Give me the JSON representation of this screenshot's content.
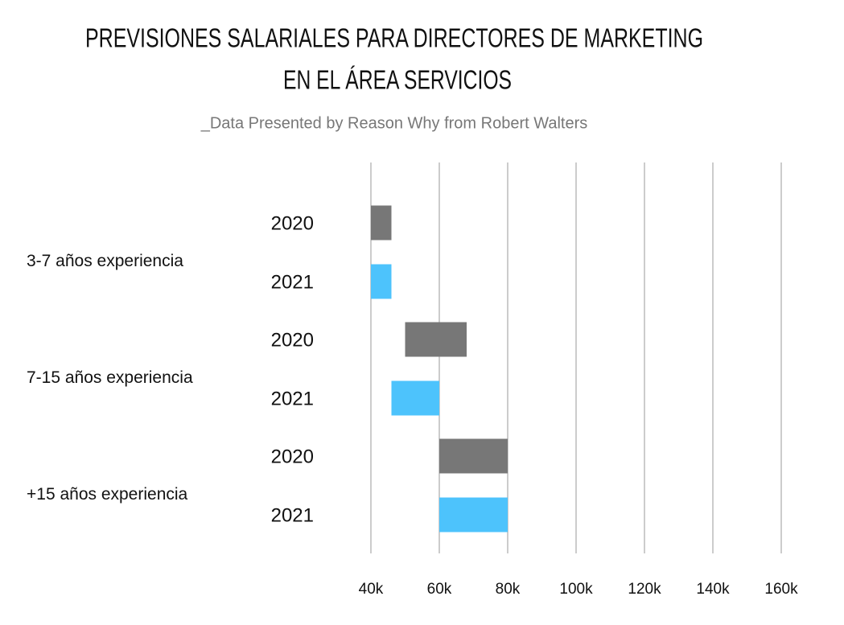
{
  "chart_data": {
    "type": "floating-bar",
    "title": [
      "PREVISIONES SALARIALES PARA DIRECTORES DE MARKETING",
      "EN EL ÁREA SERVICIOS"
    ],
    "subtitle": "_Data Presented by Reason Why from Robert Walters",
    "colors": [
      "#777777",
      "#4dc3fc"
    ],
    "groups": [
      {
        "name": "3-7 años experiencia",
        "bars": [
          {
            "label": "2020",
            "start": 40000,
            "end": 46000
          },
          {
            "label": "2021",
            "start": 40000,
            "end": 46000
          }
        ]
      },
      {
        "name": "7-15 años experiencia",
        "bars": [
          {
            "label": "2020",
            "start": 50000,
            "end": 68000
          },
          {
            "label": "2021",
            "start": 46000,
            "end": 60000
          }
        ]
      },
      {
        "name": "+15 años experiencia",
        "bars": [
          {
            "label": "2020",
            "start": 60000,
            "end": 80000
          },
          {
            "label": "2021",
            "start": 60000,
            "end": 80000
          }
        ]
      }
    ],
    "xlim": [
      40000,
      160000
    ],
    "xticks": [
      {
        "value": 40000,
        "label": "40k"
      },
      {
        "value": 60000,
        "label": "60k"
      },
      {
        "value": 80000,
        "label": "80k"
      },
      {
        "value": 100000,
        "label": "100k"
      },
      {
        "value": 120000,
        "label": "120k"
      },
      {
        "value": 140000,
        "label": "140k"
      },
      {
        "value": 160000,
        "label": "160k"
      }
    ],
    "grid": true
  }
}
